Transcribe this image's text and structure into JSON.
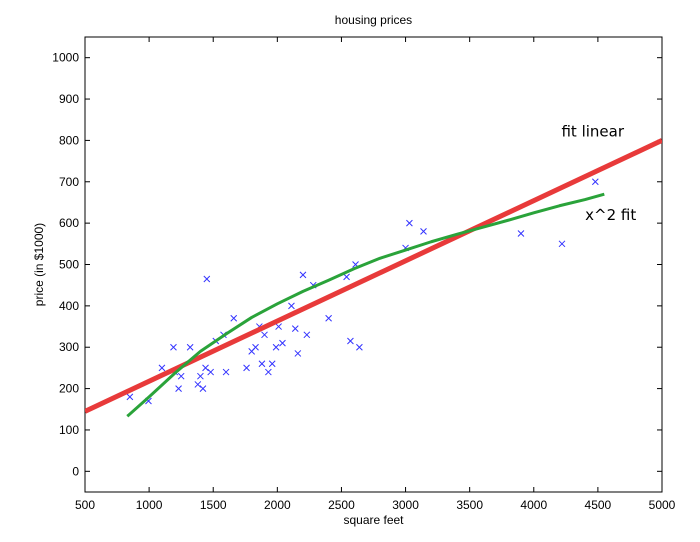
{
  "chart_data": {
    "type": "scatter",
    "title": "housing prices",
    "xlabel": "square feet",
    "ylabel": "price (in $1000)",
    "xlim": [
      500,
      5000
    ],
    "ylim": [
      -50,
      1050
    ],
    "xticks": [
      500,
      1000,
      1500,
      2000,
      2500,
      3000,
      3500,
      4000,
      4500,
      5000
    ],
    "yticks": [
      0,
      100,
      200,
      300,
      400,
      500,
      600,
      700,
      800,
      900,
      1000
    ],
    "grid": false,
    "legend": "none",
    "series": [
      {
        "kind": "scatter",
        "marker": "x",
        "color": "#3333ff",
        "points": [
          [
            850,
            180
          ],
          [
            995,
            170
          ],
          [
            1100,
            250
          ],
          [
            1190,
            300
          ],
          [
            1200,
            240
          ],
          [
            1230,
            200
          ],
          [
            1250,
            230
          ],
          [
            1320,
            300
          ],
          [
            1380,
            210
          ],
          [
            1400,
            230
          ],
          [
            1420,
            200
          ],
          [
            1440,
            250
          ],
          [
            1450,
            465
          ],
          [
            1480,
            240
          ],
          [
            1520,
            315
          ],
          [
            1580,
            330
          ],
          [
            1600,
            240
          ],
          [
            1660,
            370
          ],
          [
            1760,
            250
          ],
          [
            1800,
            290
          ],
          [
            1830,
            300
          ],
          [
            1860,
            350
          ],
          [
            1880,
            260
          ],
          [
            1900,
            330
          ],
          [
            1930,
            240
          ],
          [
            1960,
            260
          ],
          [
            1990,
            300
          ],
          [
            2010,
            350
          ],
          [
            2040,
            310
          ],
          [
            2110,
            400
          ],
          [
            2140,
            345
          ],
          [
            2160,
            285
          ],
          [
            2200,
            475
          ],
          [
            2230,
            330
          ],
          [
            2280,
            450
          ],
          [
            2400,
            370
          ],
          [
            2540,
            470
          ],
          [
            2570,
            315
          ],
          [
            2610,
            500
          ],
          [
            2640,
            300
          ],
          [
            3000,
            540
          ],
          [
            3030,
            600
          ],
          [
            3140,
            580
          ],
          [
            3900,
            575
          ],
          [
            4220,
            550
          ],
          [
            4480,
            700
          ]
        ]
      },
      {
        "kind": "line",
        "color": "#e83a3a",
        "points": [
          [
            500,
            145
          ],
          [
            5000,
            800
          ]
        ]
      },
      {
        "kind": "line",
        "color": "#2aa33a",
        "points": [
          [
            830,
            133
          ],
          [
            1000,
            180
          ],
          [
            1200,
            237
          ],
          [
            1400,
            290
          ],
          [
            1600,
            332
          ],
          [
            1800,
            372
          ],
          [
            2000,
            405
          ],
          [
            2200,
            435
          ],
          [
            2400,
            462
          ],
          [
            2600,
            490
          ],
          [
            2800,
            515
          ],
          [
            3000,
            535
          ],
          [
            3200,
            555
          ],
          [
            3400,
            573
          ],
          [
            3600,
            590
          ],
          [
            3800,
            607
          ],
          [
            4000,
            625
          ],
          [
            4200,
            642
          ],
          [
            4400,
            657
          ],
          [
            4550,
            670
          ]
        ]
      }
    ],
    "annotations": [
      {
        "text": "fit linear",
        "x": 4460,
        "y": 810
      },
      {
        "text": "x^2 fit",
        "x": 4600,
        "y": 608
      }
    ]
  }
}
